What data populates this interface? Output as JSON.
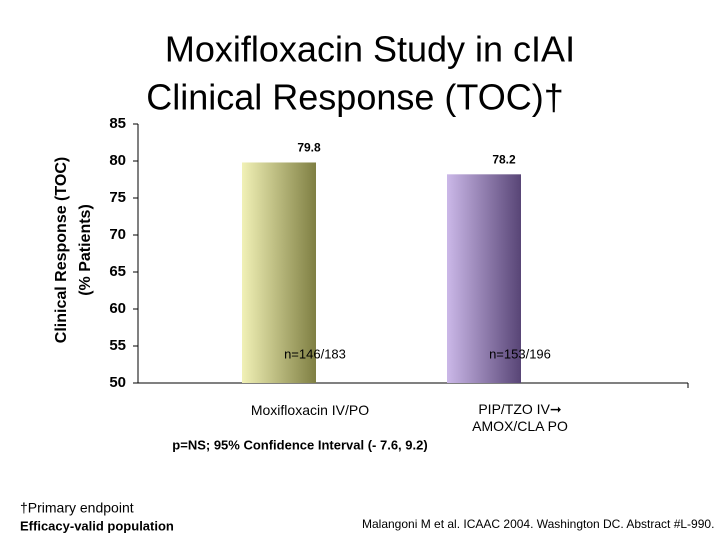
{
  "chart_data": {
    "type": "bar",
    "title": "Moxifloxacin Study in cIAI",
    "subtitle": "Clinical Response (TOC)†",
    "ylabel": [
      "Clinical Response (TOC)",
      "(% Patients)"
    ],
    "categories": [
      "Moxifloxacin IV/PO",
      "PIP/TZO IV➞ AMOX/CLA PO"
    ],
    "values": [
      79.8,
      78.2
    ],
    "annotations": [
      "n=146/183",
      "n=153/196"
    ],
    "colors": [
      "#e6e67a",
      "#a07ed6"
    ],
    "ylim": [
      50,
      85
    ],
    "yticks": [
      50,
      55,
      60,
      65,
      70,
      75,
      80,
      85
    ],
    "note": "p=NS; 95% Confidence Interval (- 7.6, 9.2)"
  },
  "footer": {
    "footnote": "†Primary endpoint",
    "population": "Efficacy-valid population",
    "citation": "Malangoni M et al. ICAAC 2004. Washington DC. Abstract #L-990."
  }
}
